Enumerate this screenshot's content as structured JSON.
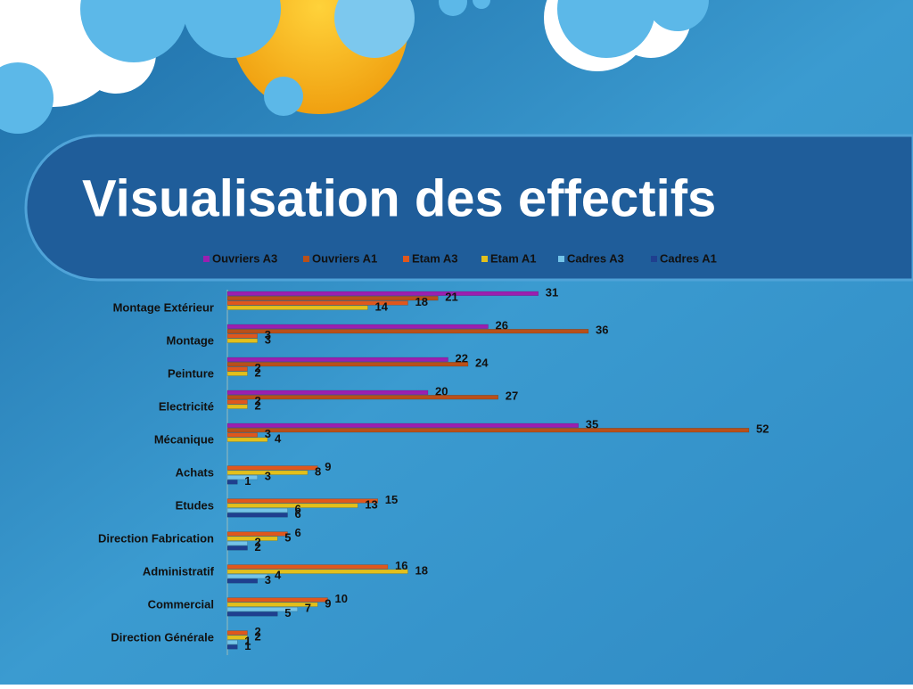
{
  "chart_data": {
    "type": "hbar",
    "title": "Visualisation des effectifs",
    "categories": [
      "Montage Extérieur",
      "Montage",
      "Peinture",
      "Electricité",
      "Mécanique",
      "Achats",
      "Etudes",
      "Direction Fabrication",
      "Administratif",
      "Commercial",
      "Direction Générale"
    ],
    "series": [
      {
        "name": "Ouvriers A3",
        "color": "#9b1fb0",
        "values": [
          31,
          26,
          22,
          20,
          35,
          null,
          null,
          null,
          null,
          null,
          null
        ]
      },
      {
        "name": "Ouvriers A1",
        "color": "#b8501a",
        "values": [
          21,
          36,
          24,
          27,
          52,
          null,
          null,
          null,
          null,
          null,
          null
        ]
      },
      {
        "name": "Etam A3",
        "color": "#e0571c",
        "values": [
          18,
          3,
          2,
          2,
          3,
          9,
          15,
          6,
          16,
          10,
          2
        ]
      },
      {
        "name": "Etam A1",
        "color": "#e3c01c",
        "values": [
          14,
          3,
          2,
          2,
          4,
          8,
          13,
          5,
          18,
          9,
          2
        ]
      },
      {
        "name": "Cadres A3",
        "color": "#74c4e8",
        "values": [
          null,
          null,
          null,
          null,
          null,
          3,
          6,
          2,
          4,
          7,
          1
        ]
      },
      {
        "name": "Cadres A1",
        "color": "#1f3f8f",
        "values": [
          null,
          null,
          null,
          null,
          null,
          1,
          6,
          2,
          3,
          5,
          1
        ]
      }
    ],
    "legend": "top"
  }
}
